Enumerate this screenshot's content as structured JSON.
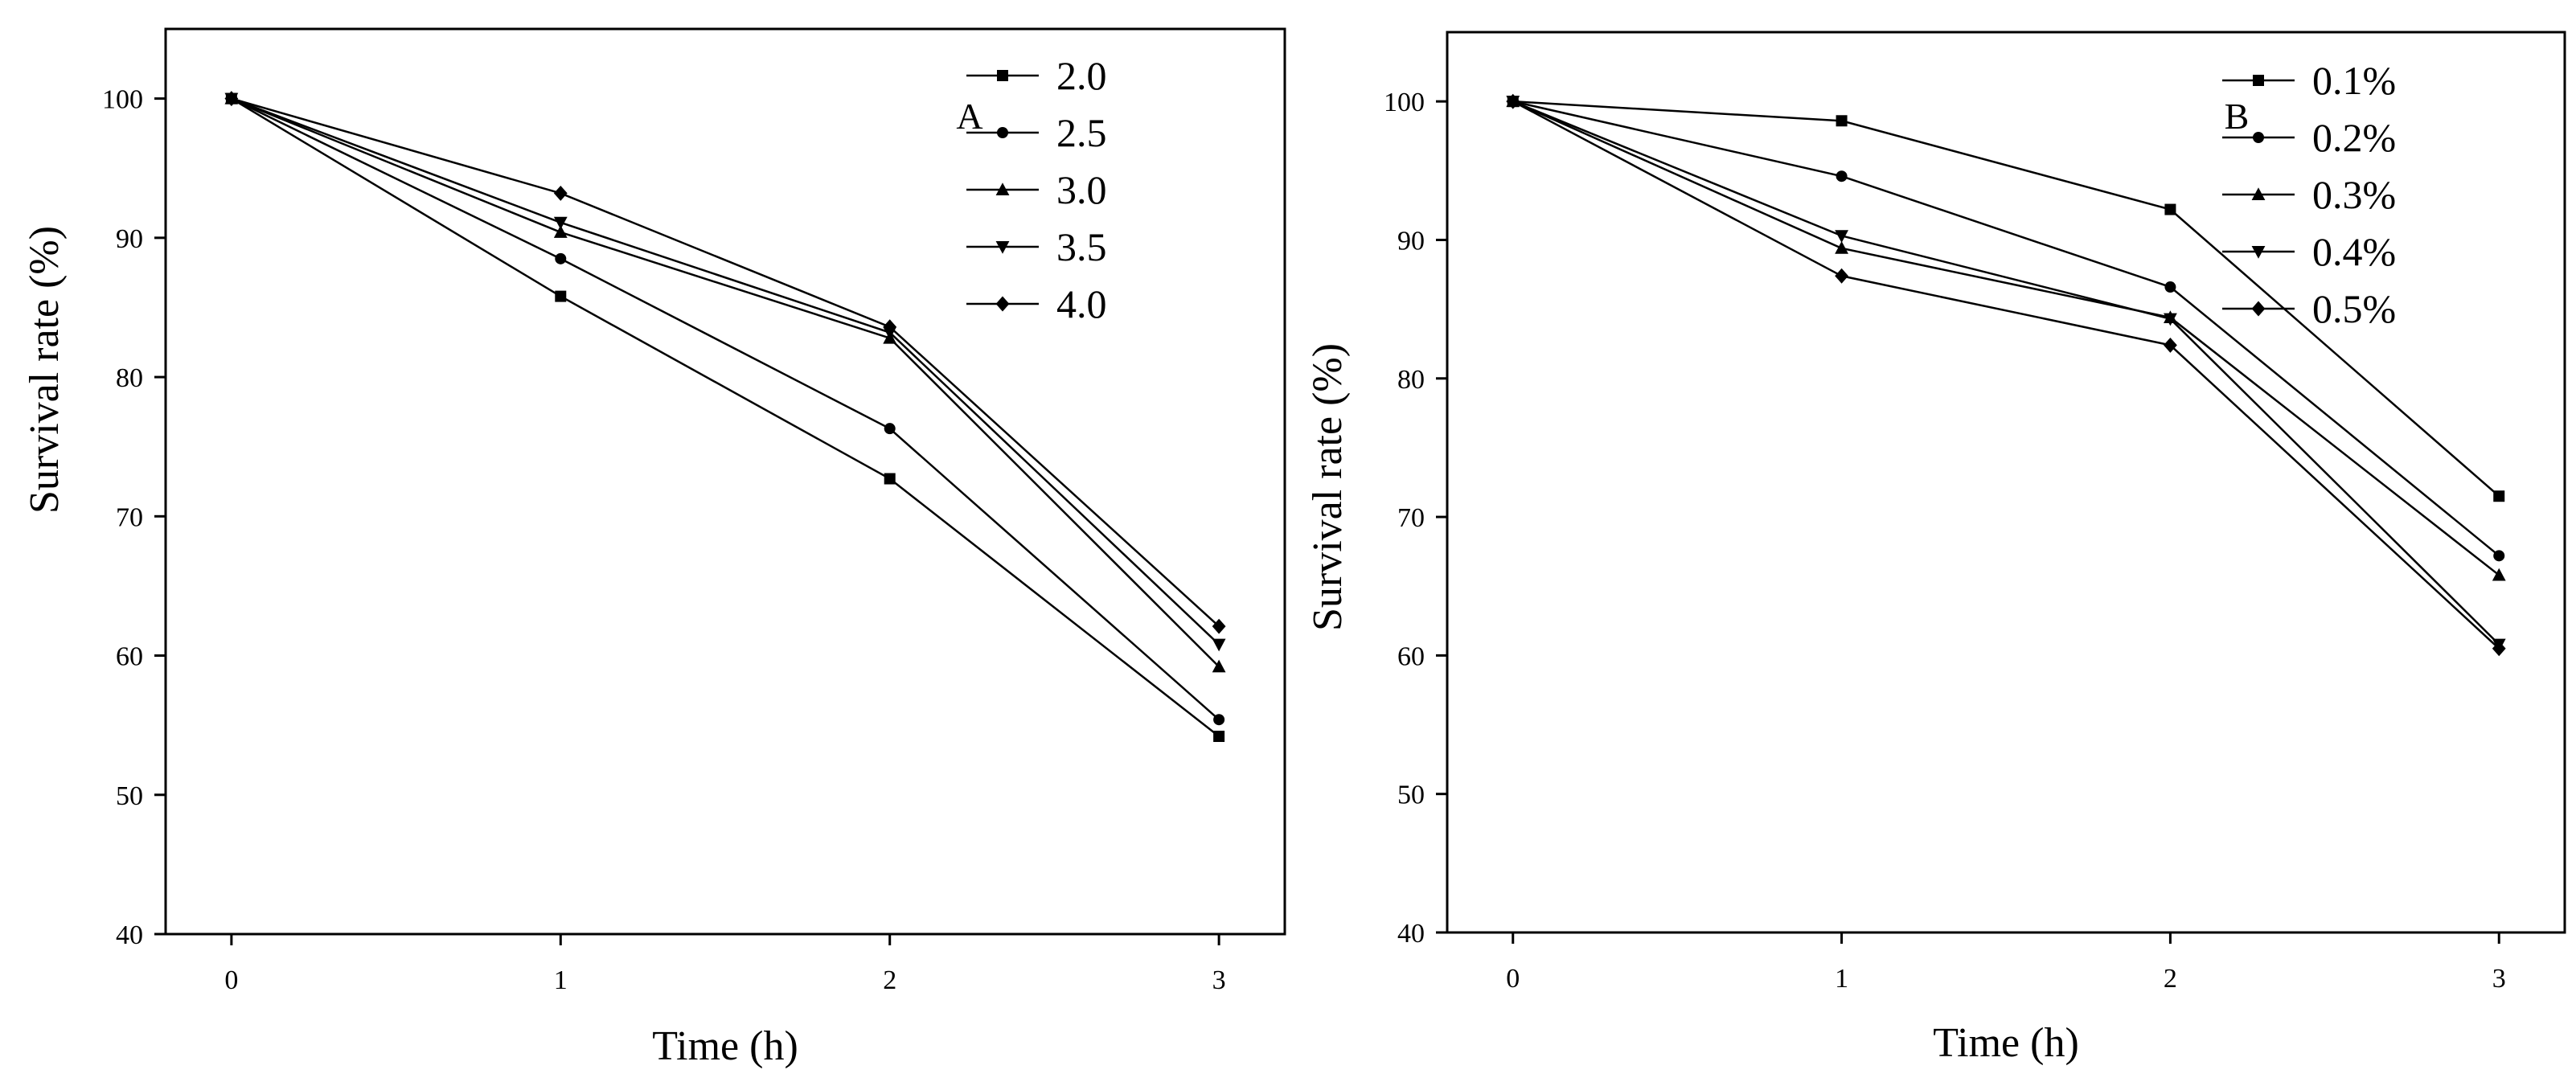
{
  "chart_data": [
    {
      "type": "line",
      "panel_label": "A",
      "xlabel": "Time (h)",
      "ylabel": "Survival rate (%)",
      "x": [
        0,
        1,
        2,
        3
      ],
      "x_tick_labels": [
        "0",
        "1",
        "2",
        "3"
      ],
      "xlim": [
        -0.2,
        3.2
      ],
      "ylim": [
        40,
        105
      ],
      "y_ticks": [
        40,
        50,
        60,
        70,
        80,
        90,
        100
      ],
      "y_tick_labels": [
        "40",
        "50",
        "60",
        "70",
        "80",
        "90",
        "100"
      ],
      "grid": false,
      "legend_position": "top-right",
      "series": [
        {
          "name": "2.0",
          "marker": "square",
          "values": [
            100,
            85.8,
            72.7,
            54.2
          ]
        },
        {
          "name": "2.5",
          "marker": "circle",
          "values": [
            100,
            88.5,
            76.3,
            55.4
          ]
        },
        {
          "name": "3.0",
          "marker": "triangle-up",
          "values": [
            100,
            90.4,
            82.8,
            59.2
          ]
        },
        {
          "name": "3.5",
          "marker": "triangle-down",
          "values": [
            100,
            91.1,
            83.2,
            60.8
          ]
        },
        {
          "name": "4.0",
          "marker": "diamond",
          "values": [
            100,
            93.2,
            83.6,
            62.1
          ]
        }
      ]
    },
    {
      "type": "line",
      "panel_label": "B",
      "xlabel": "Time (h)",
      "ylabel": "Survival rate (%)",
      "x": [
        0,
        1,
        2,
        3
      ],
      "x_tick_labels": [
        "0",
        "1",
        "2",
        "3"
      ],
      "xlim": [
        -0.2,
        3.2
      ],
      "ylim": [
        40,
        105
      ],
      "y_ticks": [
        40,
        50,
        60,
        70,
        80,
        90,
        100
      ],
      "y_tick_labels": [
        "40",
        "50",
        "60",
        "70",
        "80",
        "90",
        "100"
      ],
      "grid": false,
      "legend_position": "top-right",
      "series": [
        {
          "name": "0.1%",
          "marker": "square",
          "values": [
            100,
            98.6,
            92.2,
            71.5
          ]
        },
        {
          "name": "0.2%",
          "marker": "circle",
          "values": [
            100,
            94.6,
            86.6,
            67.2
          ]
        },
        {
          "name": "0.3%",
          "marker": "triangle-up",
          "values": [
            100,
            89.4,
            84.4,
            65.8
          ]
        },
        {
          "name": "0.4%",
          "marker": "triangle-down",
          "values": [
            100,
            90.3,
            84.3,
            60.8
          ]
        },
        {
          "name": "0.5%",
          "marker": "diamond",
          "values": [
            100,
            87.4,
            82.4,
            60.5
          ]
        }
      ]
    }
  ],
  "colors": {
    "line": "#000000",
    "background": "#ffffff"
  }
}
